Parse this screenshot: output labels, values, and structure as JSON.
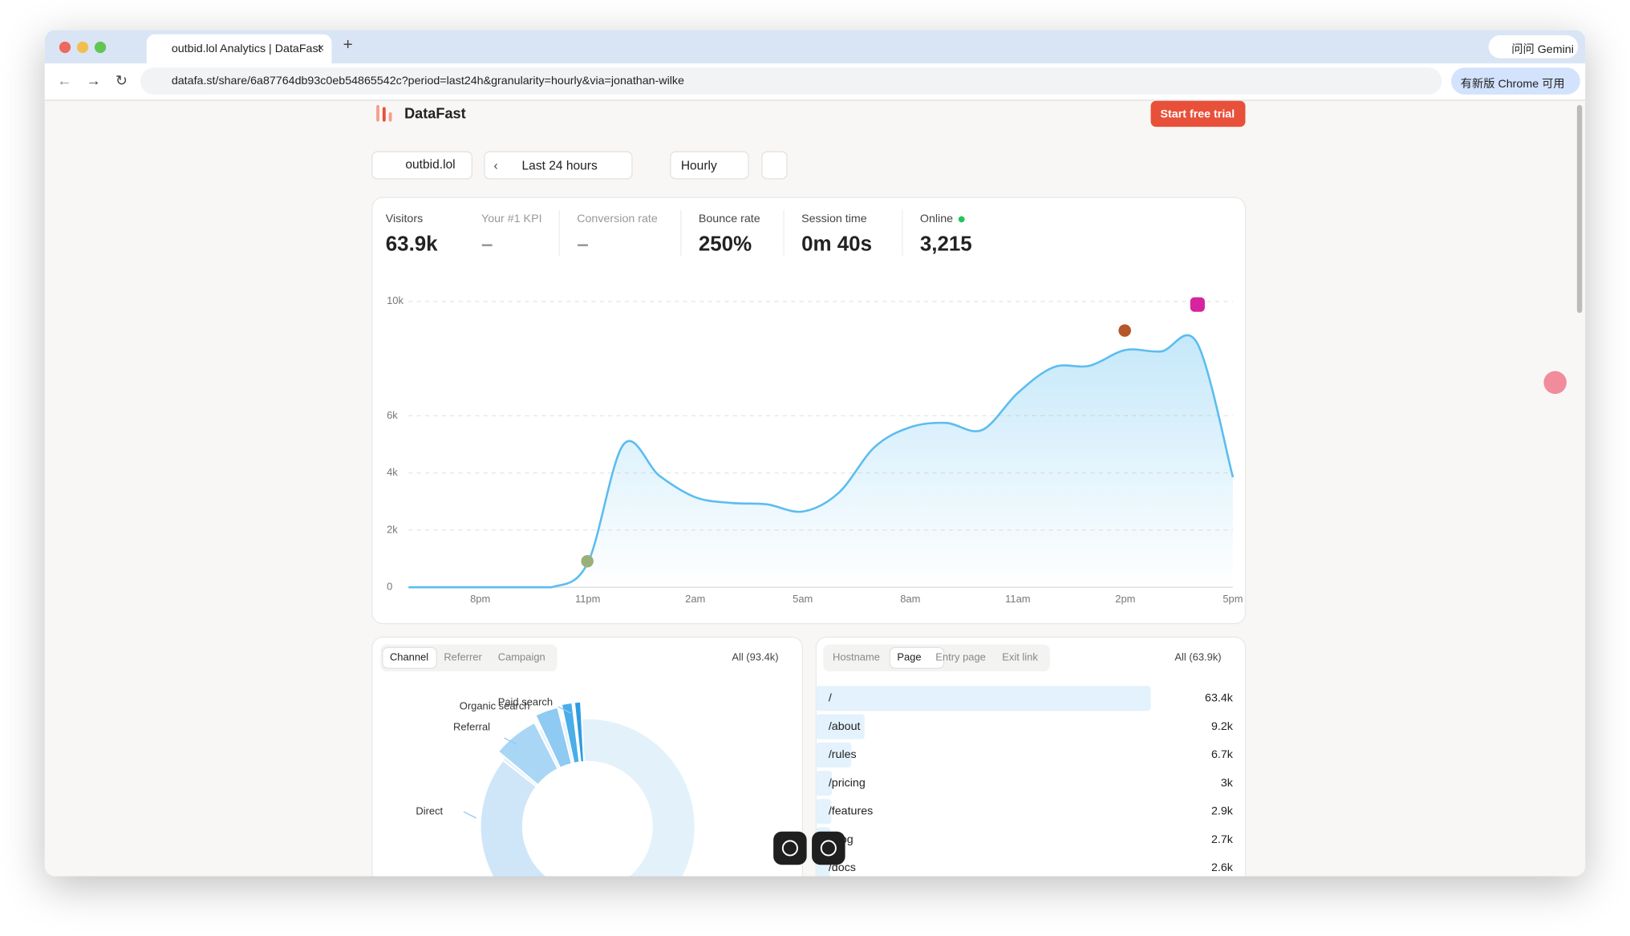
{
  "browser": {
    "tab_title": "outbid.lol Analytics | DataFast",
    "url": "datafa.st/share/6a87764db93c0eb54865542c?period=last24h&granularity=hourly&via=jonathan-wilke",
    "gemini": "问问 Gemini",
    "update": "有新版 Chrome 可用"
  },
  "header": {
    "brand": "DataFast",
    "cta": "Start free trial"
  },
  "controls": {
    "site": "outbid.lol",
    "period": "Last 24 hours",
    "granularity": "Hourly"
  },
  "kpis": [
    {
      "label": "Visitors",
      "value": "63.9k"
    },
    {
      "label": "Your #1 KPI",
      "value": "–"
    },
    {
      "label": "Conversion rate",
      "value": "–"
    },
    {
      "label": "Bounce rate",
      "value": "250%"
    },
    {
      "label": "Session time",
      "value": "0m 40s"
    },
    {
      "label": "Online",
      "value": "3,215"
    }
  ],
  "chart_data": {
    "type": "line",
    "categories": [
      null,
      null,
      "8pm",
      null,
      null,
      "11pm",
      null,
      null,
      "2am",
      null,
      null,
      "5am",
      null,
      null,
      "8am",
      null,
      null,
      "11am",
      null,
      null,
      "2pm",
      null,
      null,
      "5pm"
    ],
    "values": [
      0,
      0,
      0,
      0,
      0,
      850,
      5000,
      3900,
      3150,
      2950,
      2900,
      2650,
      3300,
      4900,
      5600,
      5750,
      5500,
      6800,
      7700,
      7750,
      8300,
      8250,
      8550,
      3850
    ],
    "color": "#5bbdf0",
    "ylim": [
      0,
      10000
    ],
    "yticks": [
      0,
      {
        "value": 2000,
        "label": "2k"
      },
      {
        "value": 4000,
        "label": "4k"
      },
      {
        "value": 6000,
        "label": "6k"
      },
      {
        "value": 10000,
        "label": "10k"
      }
    ],
    "grid": true
  },
  "channels": {
    "tabs": [
      "Channel",
      "Referrer",
      "Campaign"
    ],
    "filter": "All (93.4k)",
    "labels": [
      "Paid search",
      "Organic search",
      "Referral",
      "Direct"
    ]
  },
  "pages": {
    "tabs": [
      "Hostname",
      "Page",
      "Entry page",
      "Exit link"
    ],
    "filter": "All (63.9k)",
    "rows": [
      {
        "path": "/",
        "value": 63400,
        "label": "63.4k"
      },
      {
        "path": "/about",
        "value": 9200,
        "label": "9.2k"
      },
      {
        "path": "/rules",
        "value": 6700,
        "label": "6.7k"
      },
      {
        "path": "/pricing",
        "value": 3000,
        "label": "3k"
      },
      {
        "path": "/features",
        "value": 2900,
        "label": "2.9k"
      },
      {
        "path": "/blog",
        "value": 2700,
        "label": "2.7k"
      },
      {
        "path": "/docs",
        "value": 2600,
        "label": "2.6k"
      }
    ]
  }
}
